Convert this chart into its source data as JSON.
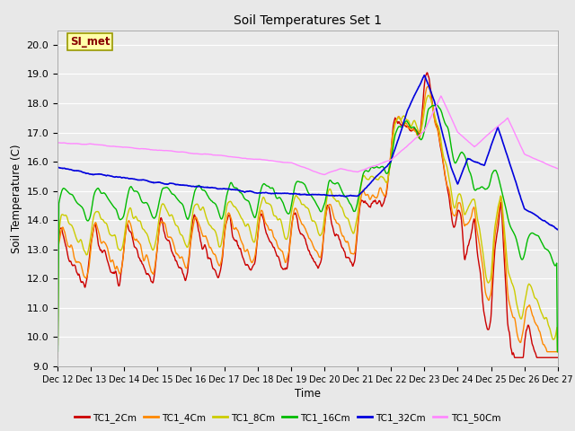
{
  "title": "Soil Temperatures Set 1",
  "xlabel": "Time",
  "ylabel": "Soil Temperature (C)",
  "ylim": [
    9.0,
    20.5
  ],
  "yticks": [
    9.0,
    10.0,
    11.0,
    12.0,
    13.0,
    14.0,
    15.0,
    16.0,
    17.0,
    18.0,
    19.0,
    20.0
  ],
  "fig_bg": "#e8e8e8",
  "ax_bg": "#ebebeb",
  "grid_color": "#ffffff",
  "series": {
    "TC1_2Cm": {
      "color": "#cc0000",
      "lw": 1.0
    },
    "TC1_4Cm": {
      "color": "#ff8800",
      "lw": 1.0
    },
    "TC1_8Cm": {
      "color": "#cccc00",
      "lw": 1.0
    },
    "TC1_16Cm": {
      "color": "#00bb00",
      "lw": 1.0
    },
    "TC1_32Cm": {
      "color": "#0000dd",
      "lw": 1.2
    },
    "TC1_50Cm": {
      "color": "#ff88ff",
      "lw": 1.0
    }
  },
  "annotation_text": "SI_met",
  "annotation_color": "#880000",
  "annotation_bg": "#ffffaa",
  "annotation_border": "#999900"
}
